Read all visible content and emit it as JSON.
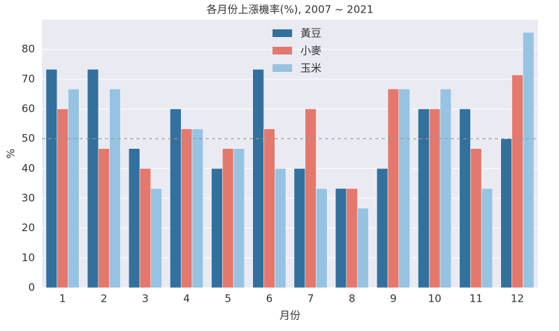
{
  "chart_data": {
    "type": "bar",
    "title": "各月份上漲機率(%), 2007 ~ 2021",
    "xlabel": "月份",
    "ylabel": "%",
    "categories": [
      "1",
      "2",
      "3",
      "4",
      "5",
      "6",
      "7",
      "8",
      "9",
      "10",
      "11",
      "12"
    ],
    "series": [
      {
        "name": "黃豆",
        "color": "#32709e",
        "values": [
          73.3,
          73.3,
          46.7,
          60,
          40,
          73.3,
          40,
          33.3,
          40,
          60,
          60,
          50
        ]
      },
      {
        "name": "小麥",
        "color": "#e4786c",
        "values": [
          60,
          46.7,
          40,
          53.3,
          46.7,
          53.3,
          60,
          33.3,
          66.7,
          60,
          46.7,
          71.4
        ]
      },
      {
        "name": "玉米",
        "color": "#97c3e2",
        "values": [
          66.7,
          66.7,
          33.3,
          53.3,
          46.7,
          40,
          33.3,
          26.7,
          66.7,
          66.7,
          33.3,
          85.7
        ]
      }
    ],
    "ylim": [
      0,
      90
    ],
    "yticks": [
      0,
      10,
      20,
      30,
      40,
      50,
      60,
      70,
      80
    ],
    "hline": 50,
    "grid": true,
    "legend": "upper center"
  }
}
